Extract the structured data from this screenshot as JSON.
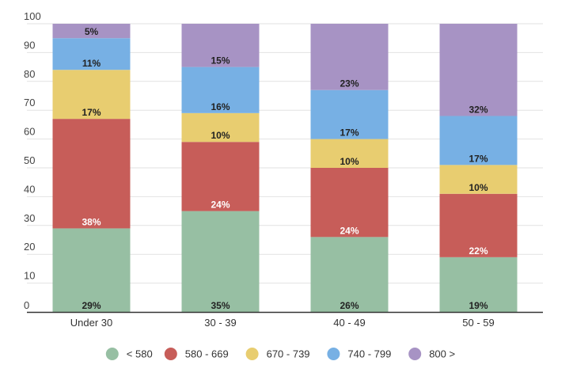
{
  "chart_data": {
    "type": "bar",
    "stacked": true,
    "title": "",
    "xlabel": "",
    "ylabel": "",
    "ylim": [
      0,
      100
    ],
    "yticks": [
      0,
      10,
      20,
      30,
      40,
      50,
      60,
      70,
      80,
      90,
      100
    ],
    "grid": true,
    "legend_position": "bottom",
    "categories": [
      "Under 30",
      "30 - 39",
      "40 - 49",
      "50 - 59"
    ],
    "series": [
      {
        "name": "< 580",
        "color": "#97bfa3",
        "label_color": "#222222",
        "values": [
          29,
          35,
          26,
          19
        ],
        "labels": [
          "29%",
          "35%",
          "26%",
          "19%"
        ]
      },
      {
        "name": "580 - 669",
        "color": "#c75d59",
        "label_color": "#ffffff",
        "values": [
          38,
          24,
          24,
          22
        ],
        "labels": [
          "38%",
          "24%",
          "24%",
          "22%"
        ]
      },
      {
        "name": "670 - 739",
        "color": "#e8cd70",
        "label_color": "#222222",
        "values": [
          17,
          10,
          10,
          10
        ],
        "labels": [
          "17%",
          "10%",
          "10%",
          "10%"
        ]
      },
      {
        "name": "740 - 799",
        "color": "#77b0e4",
        "label_color": "#222222",
        "values": [
          11,
          16,
          17,
          17
        ],
        "labels": [
          "11%",
          "16%",
          "17%",
          "17%"
        ]
      },
      {
        "name": "800 >",
        "color": "#a793c4",
        "label_color": "#222222",
        "values": [
          5,
          15,
          23,
          32
        ],
        "labels": [
          "5%",
          "15%",
          "23%",
          "32%"
        ]
      }
    ]
  }
}
